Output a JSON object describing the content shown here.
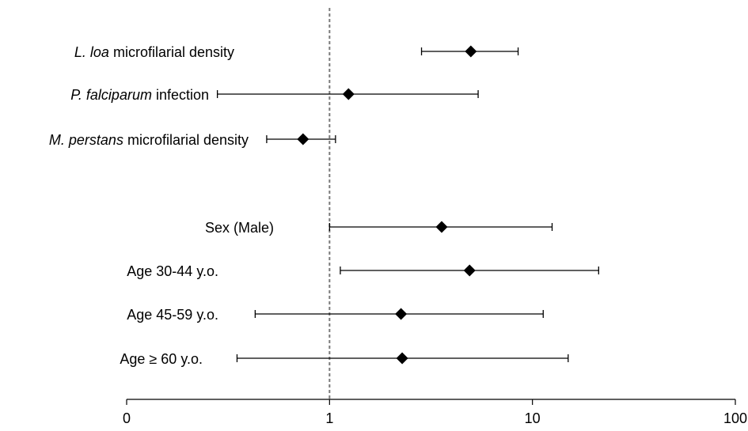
{
  "chart_data": {
    "type": "forest",
    "xscale": "log",
    "xlim": [
      0.1,
      100
    ],
    "reference_line": 1,
    "xticks": [
      {
        "value": 0.1,
        "label": "0"
      },
      {
        "value": 1,
        "label": "1"
      },
      {
        "value": 10,
        "label": "10"
      },
      {
        "value": 100,
        "label": "100"
      }
    ],
    "rows": [
      {
        "label_italic": "L. loa",
        "label_rest": " microfilarial density",
        "estimate": 4.97,
        "lower": 2.84,
        "upper": 8.5
      },
      {
        "label_italic": "P. falciparum",
        "label_rest": " infection",
        "estimate": 1.24,
        "lower": 0.28,
        "upper": 5.4
      },
      {
        "label_italic": "M. perstans",
        "label_rest": " microfilarial density",
        "estimate": 0.74,
        "lower": 0.49,
        "upper": 1.07
      },
      {
        "label_italic": "",
        "label_rest": "Sex (Male)",
        "estimate": 3.57,
        "lower": 1.0,
        "upper": 12.5
      },
      {
        "label_italic": "",
        "label_rest": "Age 30-44 y.o.",
        "estimate": 4.9,
        "lower": 1.13,
        "upper": 21.2
      },
      {
        "label_italic": "",
        "label_rest": "Age 45-59 y.o.",
        "estimate": 2.25,
        "lower": 0.43,
        "upper": 11.3
      },
      {
        "label_italic": "",
        "label_rest": "Age ≥ 60 y.o.",
        "estimate": 2.28,
        "lower": 0.35,
        "upper": 15.0
      }
    ],
    "title": "",
    "xlabel": "",
    "ylabel": ""
  }
}
